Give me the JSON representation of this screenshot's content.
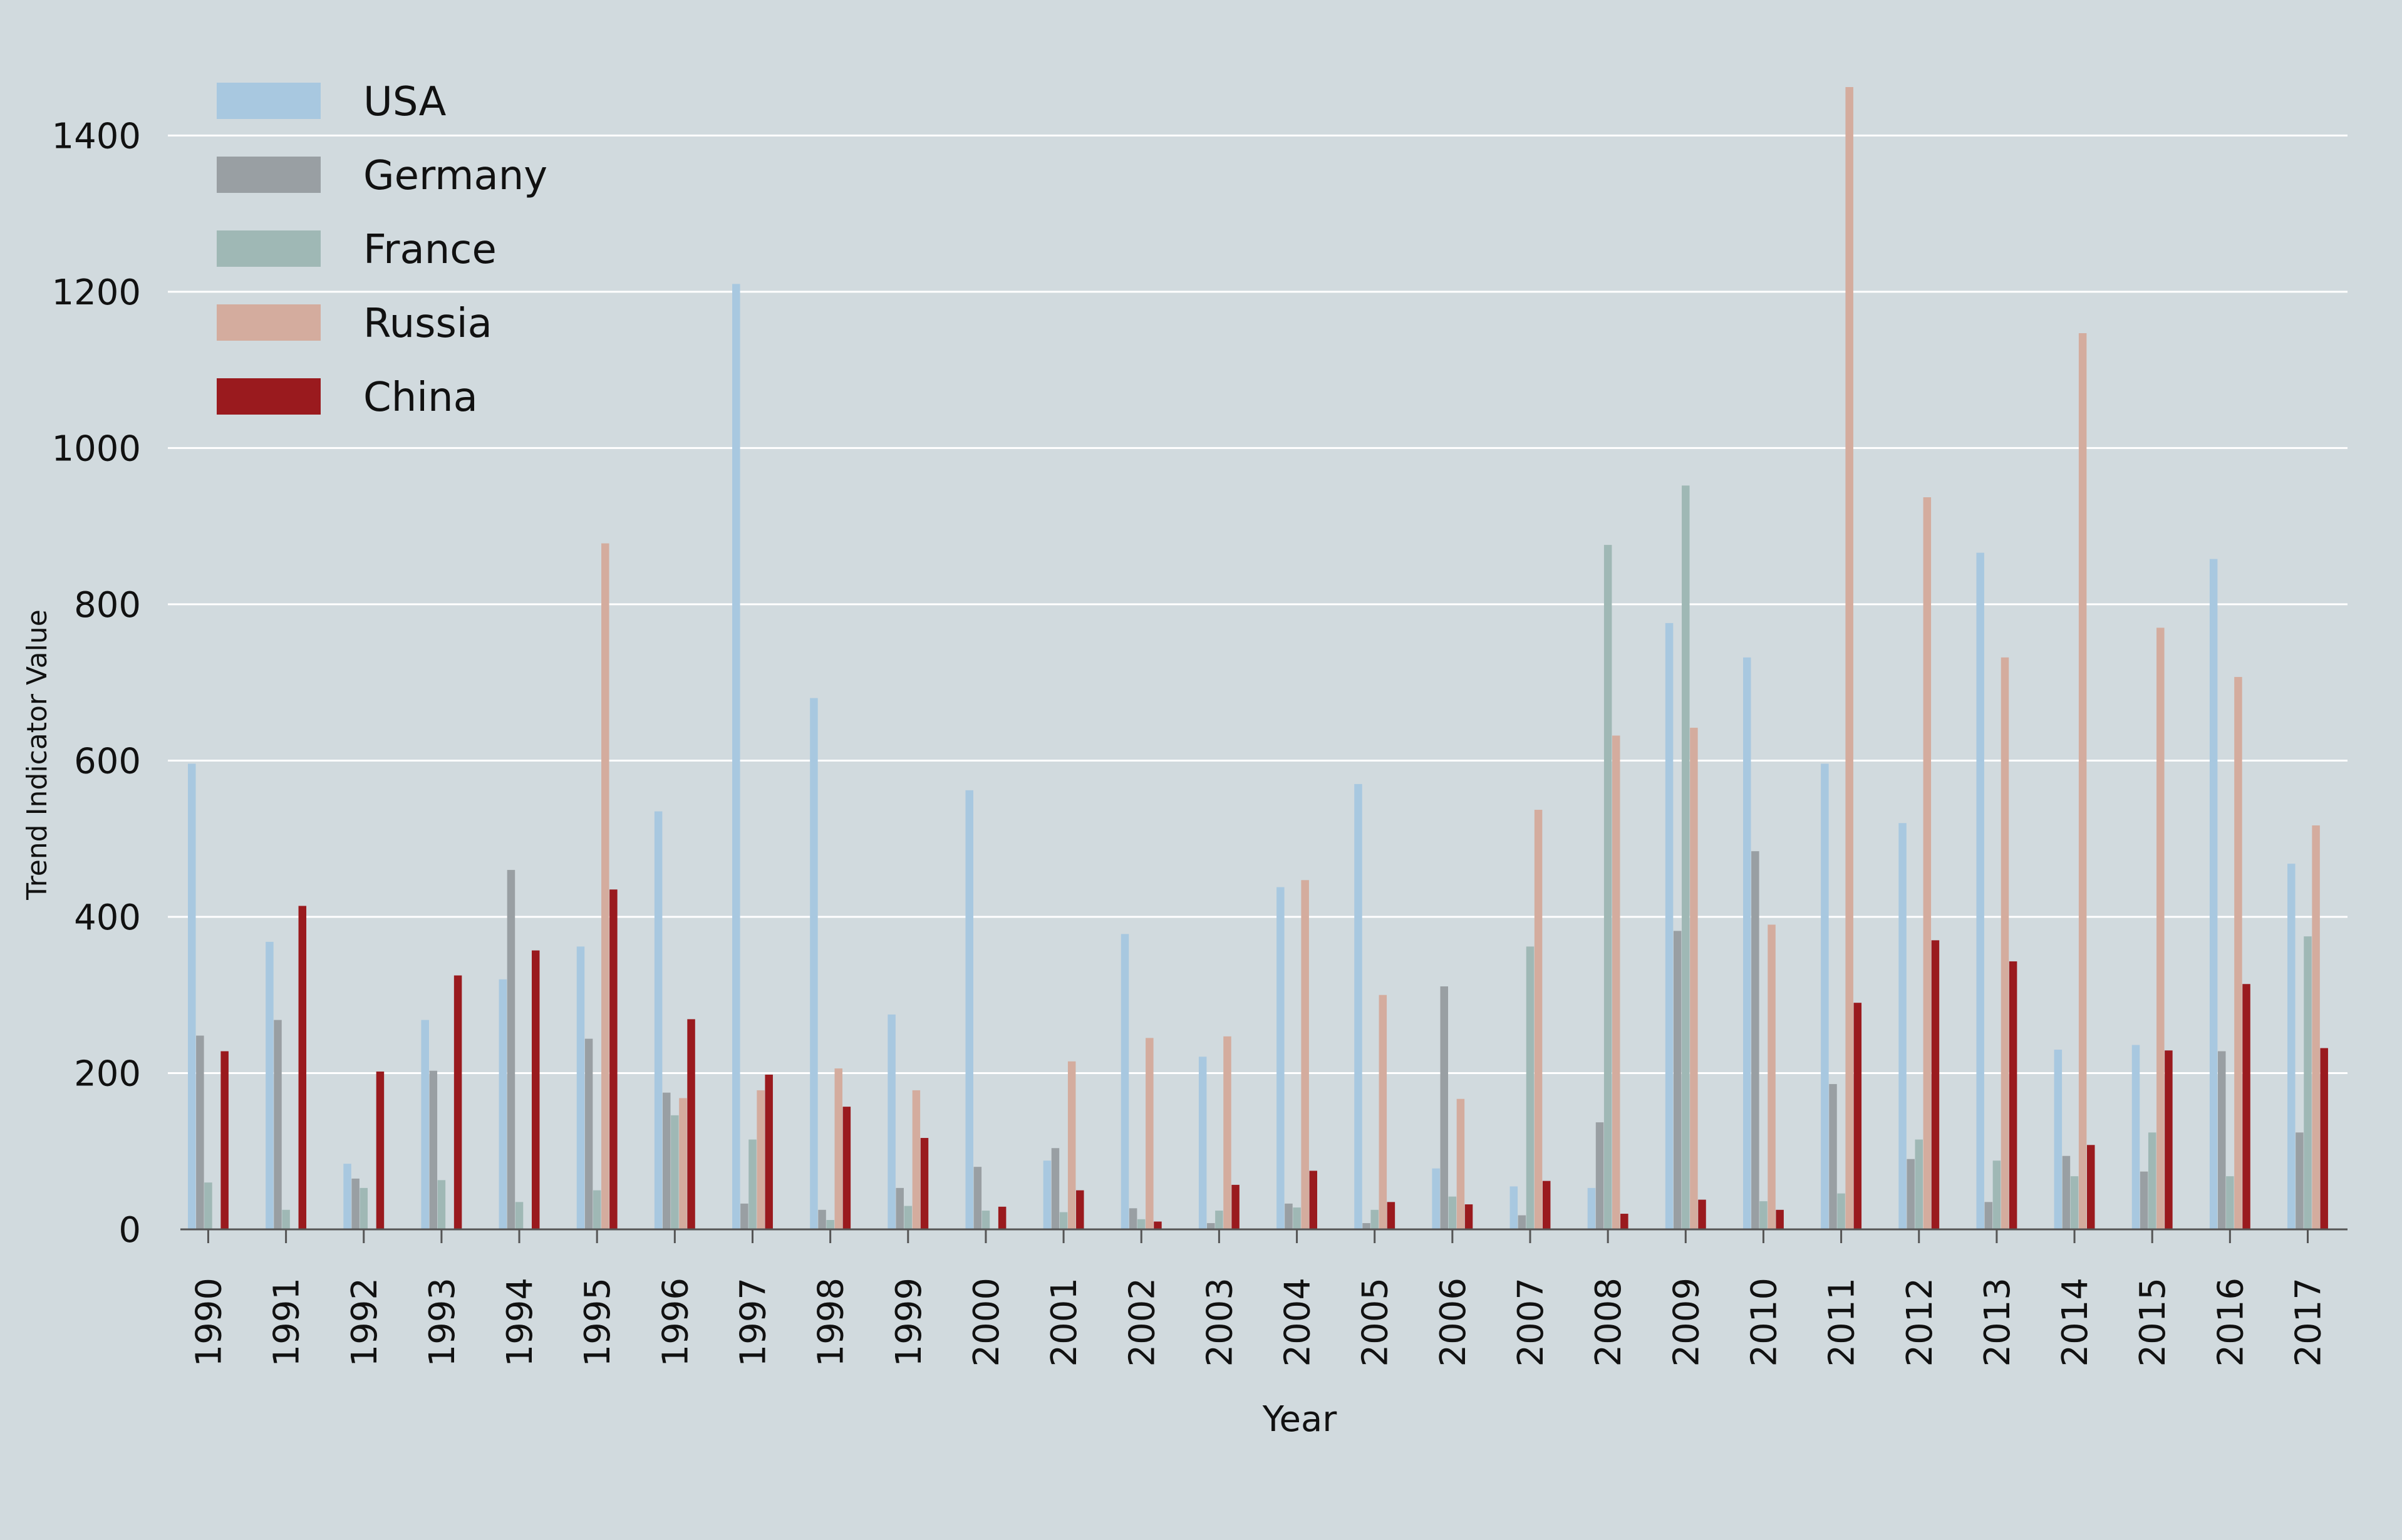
{
  "chart_data": {
    "type": "bar",
    "title": "",
    "xlabel": "Year",
    "ylabel": "Trend Indicator Value",
    "ylim": [
      0,
      1500
    ],
    "yticks": [
      0,
      200,
      400,
      600,
      800,
      1000,
      1200,
      1400
    ],
    "grid": true,
    "legend_position": "top-left",
    "categories": [
      "1990",
      "1991",
      "1992",
      "1993",
      "1994",
      "1995",
      "1996",
      "1997",
      "1998",
      "1999",
      "2000",
      "2001",
      "2002",
      "2003",
      "2004",
      "2005",
      "2006",
      "2007",
      "2008",
      "2009",
      "2010",
      "2011",
      "2012",
      "2013",
      "2014",
      "2015",
      "2016",
      "2017"
    ],
    "series": [
      {
        "name": "USA",
        "color": "#a8c8e0",
        "values": [
          596,
          368,
          84,
          268,
          320,
          362,
          535,
          1210,
          680,
          275,
          562,
          88,
          378,
          221,
          438,
          570,
          78,
          55,
          53,
          776,
          732,
          596,
          520,
          866,
          230,
          236,
          858,
          468
        ]
      },
      {
        "name": "Germany",
        "color": "#999fa3",
        "values": [
          248,
          268,
          65,
          203,
          460,
          244,
          175,
          33,
          25,
          53,
          80,
          104,
          27,
          8,
          33,
          8,
          311,
          18,
          137,
          382,
          484,
          186,
          90,
          35,
          94,
          74,
          228,
          124
        ]
      },
      {
        "name": "France",
        "color": "#9fb8b5",
        "values": [
          60,
          25,
          53,
          63,
          35,
          50,
          146,
          115,
          12,
          30,
          24,
          22,
          13,
          24,
          28,
          25,
          42,
          362,
          876,
          952,
          36,
          46,
          115,
          88,
          68,
          124,
          68,
          375
        ]
      },
      {
        "name": "Russia",
        "color": "#d4ac9e",
        "values": [
          0,
          0,
          0,
          0,
          0,
          878,
          168,
          178,
          206,
          178,
          0,
          215,
          245,
          247,
          447,
          300,
          167,
          537,
          632,
          642,
          390,
          1462,
          937,
          732,
          1147,
          770,
          707,
          517
        ]
      },
      {
        "name": "China",
        "color": "#9a1a1e",
        "values": [
          228,
          414,
          202,
          325,
          357,
          435,
          269,
          198,
          157,
          117,
          29,
          50,
          10,
          57,
          75,
          35,
          32,
          62,
          20,
          38,
          25,
          290,
          370,
          343,
          108,
          229,
          314,
          232
        ]
      }
    ]
  }
}
